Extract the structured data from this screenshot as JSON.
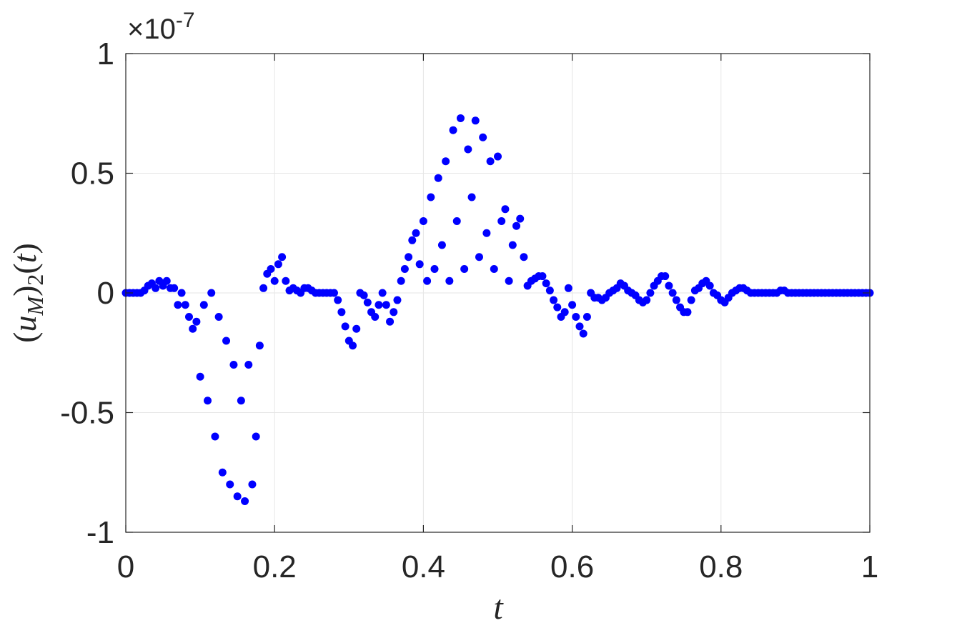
{
  "chart_data": {
    "type": "scatter",
    "xlabel": "t",
    "ylabel": [
      "(",
      "u",
      "M",
      ")",
      "2",
      "(",
      "t",
      ")"
    ],
    "y_multiplier": [
      "×10",
      "-7"
    ],
    "color": "#0000ff",
    "grid": true,
    "xlim": [
      0,
      1
    ],
    "xticks": [
      0,
      0.2,
      0.4,
      0.6,
      0.8,
      1
    ],
    "ylim": [
      -1,
      1
    ],
    "yticks": [
      -1,
      -0.5,
      0,
      0.5,
      1
    ],
    "x": [
      0,
      0.005,
      0.01,
      0.015,
      0.02,
      0.025,
      0.03,
      0.035,
      0.04,
      0.045,
      0.05,
      0.055,
      0.06,
      0.065,
      0.07,
      0.075,
      0.08,
      0.085,
      0.09,
      0.095,
      0.1,
      0.105,
      0.11,
      0.115,
      0.12,
      0.125,
      0.13,
      0.135,
      0.14,
      0.145,
      0.15,
      0.155,
      0.16,
      0.165,
      0.17,
      0.175,
      0.18,
      0.185,
      0.19,
      0.195,
      0.2,
      0.205,
      0.21,
      0.215,
      0.22,
      0.225,
      0.23,
      0.235,
      0.24,
      0.245,
      0.25,
      0.255,
      0.26,
      0.265,
      0.27,
      0.275,
      0.28,
      0.285,
      0.29,
      0.295,
      0.3,
      0.305,
      0.31,
      0.315,
      0.32,
      0.325,
      0.33,
      0.335,
      0.34,
      0.345,
      0.35,
      0.355,
      0.36,
      0.365,
      0.37,
      0.375,
      0.38,
      0.385,
      0.39,
      0.395,
      0.4,
      0.405,
      0.41,
      0.415,
      0.42,
      0.425,
      0.43,
      0.435,
      0.44,
      0.445,
      0.45,
      0.455,
      0.46,
      0.465,
      0.47,
      0.475,
      0.48,
      0.485,
      0.49,
      0.495,
      0.5,
      0.505,
      0.51,
      0.515,
      0.52,
      0.525,
      0.53,
      0.535,
      0.54,
      0.545,
      0.55,
      0.555,
      0.56,
      0.565,
      0.57,
      0.575,
      0.58,
      0.585,
      0.59,
      0.595,
      0.6,
      0.605,
      0.61,
      0.615,
      0.62,
      0.625,
      0.63,
      0.635,
      0.64,
      0.645,
      0.65,
      0.655,
      0.66,
      0.665,
      0.67,
      0.675,
      0.68,
      0.685,
      0.69,
      0.695,
      0.7,
      0.705,
      0.71,
      0.715,
      0.72,
      0.725,
      0.73,
      0.735,
      0.74,
      0.745,
      0.75,
      0.755,
      0.76,
      0.765,
      0.77,
      0.775,
      0.78,
      0.785,
      0.79,
      0.795,
      0.8,
      0.805,
      0.81,
      0.815,
      0.82,
      0.825,
      0.83,
      0.835,
      0.84,
      0.845,
      0.85,
      0.855,
      0.86,
      0.865,
      0.87,
      0.875,
      0.88,
      0.885,
      0.89,
      0.895,
      0.9,
      0.905,
      0.91,
      0.915,
      0.92,
      0.925,
      0.93,
      0.935,
      0.94,
      0.945,
      0.95,
      0.955,
      0.96,
      0.965,
      0.97,
      0.975,
      0.98,
      0.985,
      0.99,
      0.995,
      1
    ],
    "values": [
      0,
      0,
      0,
      0,
      0,
      0.01,
      0.03,
      0.04,
      0.02,
      0.05,
      0.03,
      0.05,
      0.02,
      0.02,
      -0.05,
      0,
      -0.05,
      -0.1,
      -0.15,
      -0.12,
      -0.35,
      -0.05,
      -0.45,
      0,
      -0.6,
      -0.1,
      -0.75,
      -0.2,
      -0.8,
      -0.3,
      -0.85,
      -0.45,
      -0.87,
      -0.3,
      -0.8,
      -0.6,
      -0.22,
      0.02,
      0.08,
      0.1,
      0.05,
      0.12,
      0.15,
      0.05,
      0.01,
      0.02,
      0.01,
      0,
      0.02,
      0.02,
      0.01,
      0,
      0,
      0,
      0,
      0,
      0,
      -0.03,
      -0.08,
      -0.14,
      -0.2,
      -0.22,
      -0.15,
      0,
      -0.01,
      -0.04,
      -0.08,
      -0.1,
      -0.05,
      0,
      -0.05,
      -0.12,
      -0.08,
      -0.03,
      0.05,
      0.1,
      0.15,
      0.22,
      0.25,
      0.12,
      0.3,
      0.05,
      0.4,
      0.1,
      0.48,
      0.2,
      0.55,
      0.05,
      0.68,
      0.3,
      0.73,
      0.1,
      0.6,
      0.4,
      0.72,
      0.15,
      0.65,
      0.25,
      0.55,
      0.1,
      0.57,
      0.3,
      0.35,
      0.05,
      0.2,
      0.28,
      0.31,
      0.15,
      0.03,
      0.05,
      0.06,
      0.07,
      0.07,
      0.04,
      0.01,
      -0.03,
      -0.06,
      -0.1,
      -0.08,
      0.02,
      -0.05,
      -0.1,
      -0.14,
      -0.17,
      -0.1,
      0,
      -0.02,
      -0.02,
      -0.03,
      -0.02,
      0,
      0.01,
      0.02,
      0.04,
      0.03,
      0.01,
      0,
      -0.01,
      -0.03,
      -0.04,
      -0.03,
      0,
      0.03,
      0.05,
      0.07,
      0.07,
      0.03,
      0,
      -0.03,
      -0.06,
      -0.08,
      -0.08,
      -0.03,
      0.01,
      0.02,
      0.04,
      0.05,
      0.03,
      0,
      -0.01,
      -0.03,
      -0.04,
      -0.02,
      0,
      0.01,
      0.02,
      0.02,
      0.01,
      0,
      0,
      0,
      0,
      0,
      0,
      0,
      0,
      0.01,
      0.01,
      0,
      0,
      0,
      0,
      0,
      0,
      0,
      0,
      0,
      0,
      0,
      0,
      0,
      0,
      0,
      0,
      0,
      0,
      0,
      0,
      0,
      0,
      0
    ]
  }
}
